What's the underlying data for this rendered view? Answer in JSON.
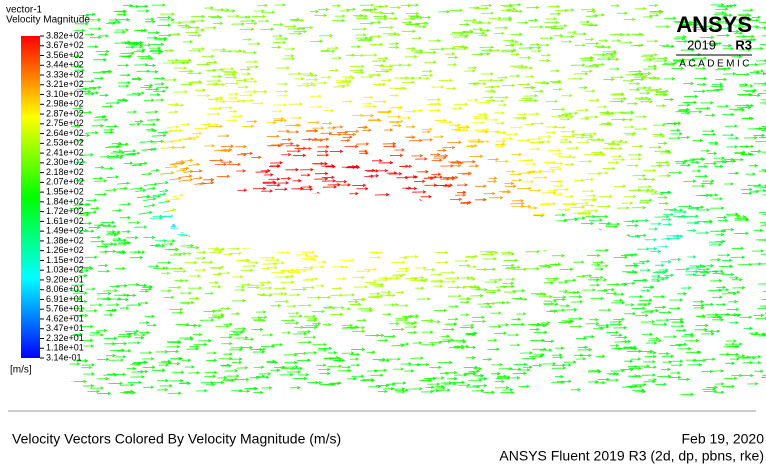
{
  "legend": {
    "title": "vector-1",
    "subtitle": "Velocity Magnitude",
    "unit": "[m/s]",
    "labels": [
      "3.82e+02",
      "3.67e+02",
      "3.56e+02",
      "3.44e+02",
      "3.33e+02",
      "3.21e+02",
      "3.10e+02",
      "2.98e+02",
      "2.87e+02",
      "2.75e+02",
      "2.64e+02",
      "2.53e+02",
      "2.41e+02",
      "2.30e+02",
      "2.18e+02",
      "2.07e+02",
      "1.95e+02",
      "1.84e+02",
      "1.72e+02",
      "1.61e+02",
      "1.49e+02",
      "1.38e+02",
      "1.26e+02",
      "1.15e+02",
      "1.03e+02",
      "9.20e+01",
      "8.06e+01",
      "6.91e+01",
      "5.76e+01",
      "4.62e+01",
      "3.47e+01",
      "2.32e+01",
      "1.18e+01",
      "3.14e-01"
    ]
  },
  "logo": {
    "brand": "ANSYS",
    "year": "2019",
    "release": "R3",
    "edition": "ACADEMIC"
  },
  "footer": {
    "caption": "Velocity Vectors Colored By Velocity Magnitude (m/s)",
    "date": "Feb 19, 2020",
    "solver": "ANSYS Fluent 2019 R3 (2d, dp, pbns, rke)"
  }
}
